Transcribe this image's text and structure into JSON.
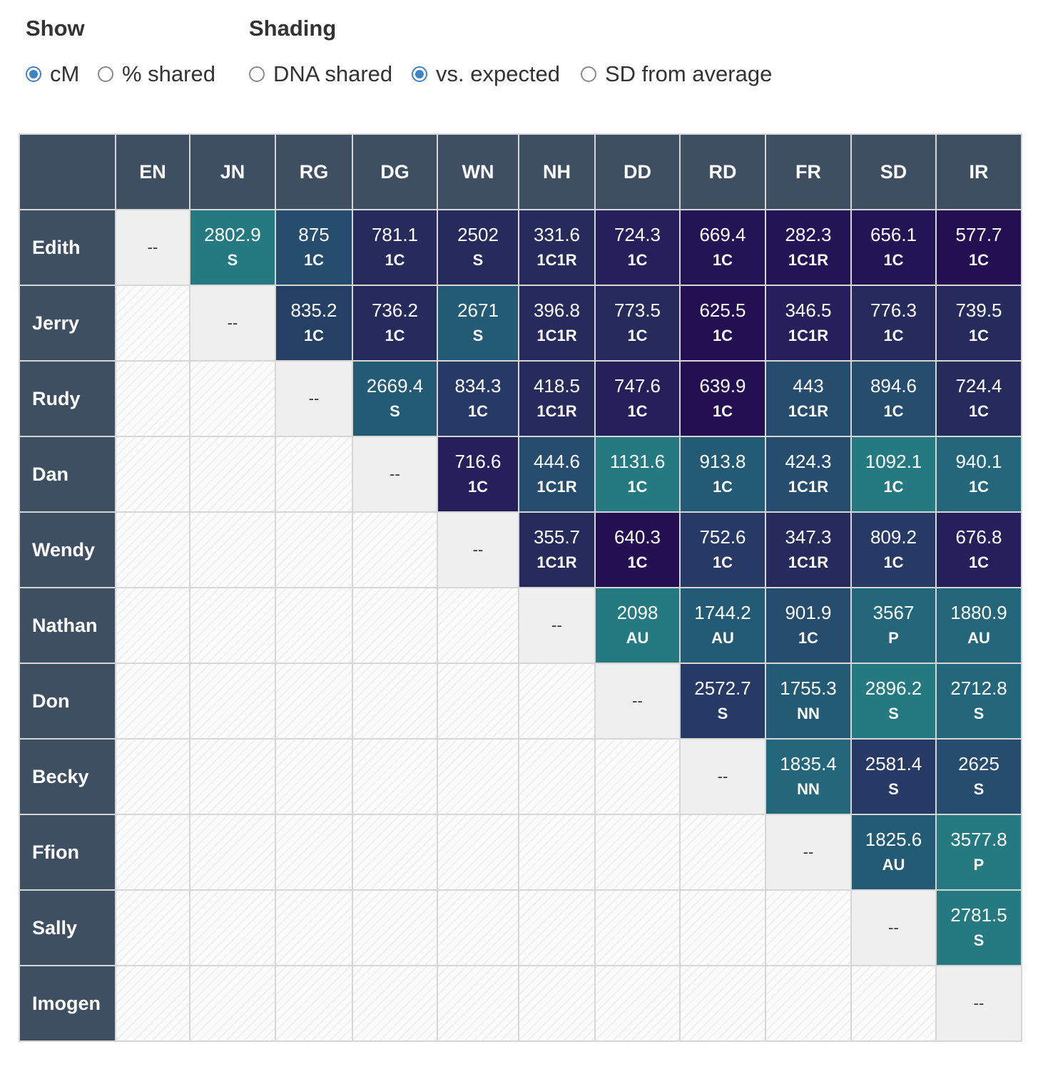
{
  "controls": {
    "show": {
      "title": "Show",
      "options": [
        {
          "label": "cM",
          "selected": true
        },
        {
          "label": "% shared",
          "selected": false
        }
      ]
    },
    "shading": {
      "title": "Shading",
      "options": [
        {
          "label": "DNA shared",
          "selected": false
        },
        {
          "label": "vs. expected",
          "selected": true
        },
        {
          "label": "SD from average",
          "selected": false
        }
      ]
    }
  },
  "matrix": {
    "self_marker": "--",
    "columns": [
      "EN",
      "JN",
      "RG",
      "DG",
      "WN",
      "NH",
      "DD",
      "RD",
      "FR",
      "SD",
      "IR"
    ],
    "rows": [
      {
        "name": "Edith",
        "cells": [
          {
            "cm": "2802.9",
            "rel": "S",
            "color": "#247a80"
          },
          {
            "cm": "875",
            "rel": "1C",
            "color": "#264c6e"
          },
          {
            "cm": "781.1",
            "rel": "1C",
            "color": "#262b5b"
          },
          {
            "cm": "2502",
            "rel": "S",
            "color": "#262b5b"
          },
          {
            "cm": "331.6",
            "rel": "1C1R",
            "color": "#262b5b"
          },
          {
            "cm": "724.3",
            "rel": "1C",
            "color": "#25205b"
          },
          {
            "cm": "669.4",
            "rel": "1C",
            "color": "#231456"
          },
          {
            "cm": "282.3",
            "rel": "1C1R",
            "color": "#231456"
          },
          {
            "cm": "656.1",
            "rel": "1C",
            "color": "#231456"
          },
          {
            "cm": "577.7",
            "rel": "1C",
            "color": "#230f52"
          }
        ]
      },
      {
        "name": "Jerry",
        "cells": [
          {
            "cm": "835.2",
            "rel": "1C",
            "color": "#264065"
          },
          {
            "cm": "736.2",
            "rel": "1C",
            "color": "#262b5b"
          },
          {
            "cm": "2671",
            "rel": "S",
            "color": "#245b74"
          },
          {
            "cm": "396.8",
            "rel": "1C1R",
            "color": "#262b5b"
          },
          {
            "cm": "773.5",
            "rel": "1C",
            "color": "#262b5b"
          },
          {
            "cm": "625.5",
            "rel": "1C",
            "color": "#230f52"
          },
          {
            "cm": "346.5",
            "rel": "1C1R",
            "color": "#25205b"
          },
          {
            "cm": "776.3",
            "rel": "1C",
            "color": "#262b5b"
          },
          {
            "cm": "739.5",
            "rel": "1C",
            "color": "#262b5b"
          }
        ]
      },
      {
        "name": "Rudy",
        "cells": [
          {
            "cm": "2669.4",
            "rel": "S",
            "color": "#245b74"
          },
          {
            "cm": "834.3",
            "rel": "1C",
            "color": "#263a65"
          },
          {
            "cm": "418.5",
            "rel": "1C1R",
            "color": "#262b5b"
          },
          {
            "cm": "747.6",
            "rel": "1C",
            "color": "#25205b"
          },
          {
            "cm": "639.9",
            "rel": "1C",
            "color": "#230f52"
          },
          {
            "cm": "443",
            "rel": "1C1R",
            "color": "#264c6e"
          },
          {
            "cm": "894.6",
            "rel": "1C",
            "color": "#264c6e"
          },
          {
            "cm": "724.4",
            "rel": "1C",
            "color": "#262b5b"
          }
        ]
      },
      {
        "name": "Dan",
        "cells": [
          {
            "cm": "716.6",
            "rel": "1C",
            "color": "#25205b"
          },
          {
            "cm": "444.6",
            "rel": "1C1R",
            "color": "#264c6e"
          },
          {
            "cm": "1131.6",
            "rel": "1C",
            "color": "#247a80"
          },
          {
            "cm": "913.8",
            "rel": "1C",
            "color": "#245b74"
          },
          {
            "cm": "424.3",
            "rel": "1C1R",
            "color": "#264c6e"
          },
          {
            "cm": "1092.1",
            "rel": "1C",
            "color": "#247a80"
          },
          {
            "cm": "940.1",
            "rel": "1C",
            "color": "#24667a"
          }
        ]
      },
      {
        "name": "Wendy",
        "cells": [
          {
            "cm": "355.7",
            "rel": "1C1R",
            "color": "#262b5b"
          },
          {
            "cm": "640.3",
            "rel": "1C",
            "color": "#230f52"
          },
          {
            "cm": "752.6",
            "rel": "1C",
            "color": "#263a65"
          },
          {
            "cm": "347.3",
            "rel": "1C1R",
            "color": "#262b5b"
          },
          {
            "cm": "809.2",
            "rel": "1C",
            "color": "#263a65"
          },
          {
            "cm": "676.8",
            "rel": "1C",
            "color": "#25205b"
          }
        ]
      },
      {
        "name": "Nathan",
        "cells": [
          {
            "cm": "2098",
            "rel": "AU",
            "color": "#247a80"
          },
          {
            "cm": "1744.2",
            "rel": "AU",
            "color": "#245b74"
          },
          {
            "cm": "901.9",
            "rel": "1C",
            "color": "#264c6e"
          },
          {
            "cm": "3567",
            "rel": "P",
            "color": "#24667a"
          },
          {
            "cm": "1880.9",
            "rel": "AU",
            "color": "#24667a"
          }
        ]
      },
      {
        "name": "Don",
        "cells": [
          {
            "cm": "2572.7",
            "rel": "S",
            "color": "#263a65"
          },
          {
            "cm": "1755.3",
            "rel": "NN",
            "color": "#245b74"
          },
          {
            "cm": "2896.2",
            "rel": "S",
            "color": "#247a80"
          },
          {
            "cm": "2712.8",
            "rel": "S",
            "color": "#24667a"
          }
        ]
      },
      {
        "name": "Becky",
        "cells": [
          {
            "cm": "1835.4",
            "rel": "NN",
            "color": "#24667a"
          },
          {
            "cm": "2581.4",
            "rel": "S",
            "color": "#263a65"
          },
          {
            "cm": "2625",
            "rel": "S",
            "color": "#264c6e"
          }
        ]
      },
      {
        "name": "Ffion",
        "cells": [
          {
            "cm": "1825.6",
            "rel": "AU",
            "color": "#245b74"
          },
          {
            "cm": "3577.8",
            "rel": "P",
            "color": "#247a80"
          }
        ]
      },
      {
        "name": "Sally",
        "cells": [
          {
            "cm": "2781.5",
            "rel": "S",
            "color": "#247a80"
          }
        ]
      },
      {
        "name": "Imogen",
        "cells": []
      }
    ]
  }
}
